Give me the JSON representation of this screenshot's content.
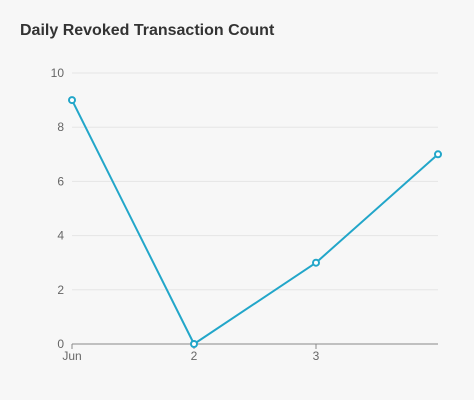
{
  "chart_data": {
    "type": "line",
    "title": "Daily Revoked Transaction Count",
    "xlabel": "",
    "ylabel": "",
    "x": [
      1,
      2,
      3,
      4
    ],
    "x_tick_values": [
      1,
      2,
      3
    ],
    "x_tick_labels": [
      "Jun",
      "2",
      "3"
    ],
    "x_range": [
      1,
      4
    ],
    "y_ticks": [
      0,
      2,
      4,
      6,
      8,
      10
    ],
    "ylim": [
      0,
      10
    ],
    "grid": true,
    "series": [
      {
        "values": [
          9,
          0,
          3,
          7
        ],
        "color": "#22a6c9"
      }
    ],
    "colors": {
      "line": "#22a6c9",
      "grid": "#e5e5e5",
      "axis": "#888888",
      "text": "#666666"
    }
  }
}
